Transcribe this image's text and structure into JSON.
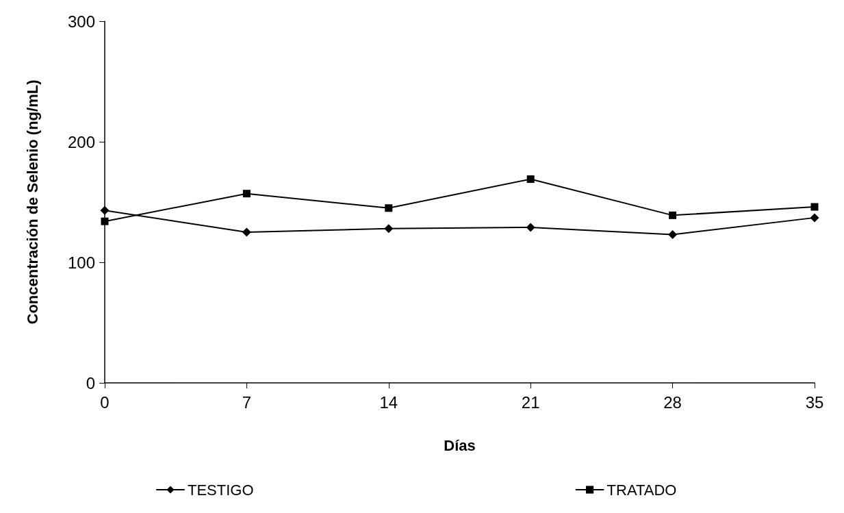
{
  "chart_data": {
    "type": "line",
    "xlabel": "Días",
    "ylabel": "Concentración de Selenio (ng/mL)",
    "x": [
      0,
      7,
      14,
      21,
      28,
      35
    ],
    "series": [
      {
        "name": "TESTIGO",
        "color": "#000000",
        "marker": "diamond",
        "values": [
          143,
          125,
          128,
          129,
          123,
          137
        ]
      },
      {
        "name": "TRATADO",
        "color": "#000000",
        "marker": "square",
        "values": [
          134,
          157,
          145,
          169,
          139,
          146
        ]
      }
    ],
    "xlim": [
      0,
      35
    ],
    "xticks": [
      0,
      7,
      14,
      21,
      28,
      35
    ],
    "ylim": [
      0,
      300
    ],
    "yticks": [
      0,
      100,
      200,
      300
    ],
    "grid": false,
    "legend": "bottom",
    "line_style": "solid"
  }
}
